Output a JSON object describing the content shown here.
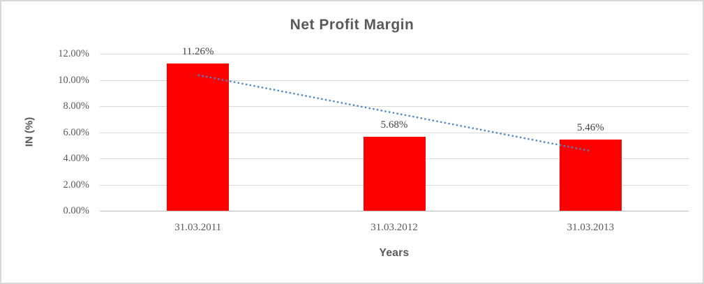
{
  "window": {
    "background": "#ffffff",
    "border_color": "#d9d9d9"
  },
  "chart_data": {
    "type": "bar",
    "title": "Net Profit Margin",
    "xlabel": "Years",
    "ylabel": "IN (%)",
    "categories": [
      "31.03.2011",
      "31.03.2012",
      "31.03.2013"
    ],
    "series": [
      {
        "name": "Net Profit Margin",
        "values": [
          11.26,
          5.68,
          5.46
        ]
      }
    ],
    "data_labels": [
      "11.26%",
      "5.68%",
      "5.46%"
    ],
    "ylim": [
      0,
      12
    ],
    "ytick_labels": [
      "12.00%",
      "10.00%",
      "8.00%",
      "6.00%",
      "4.00%",
      "2.00%",
      "0.00%"
    ],
    "grid": true,
    "legend": "none",
    "bar_color": "#ff0000",
    "trendline": {
      "type": "linear",
      "style": "dotted",
      "color": "#4a86c8",
      "start_value": 10.37,
      "end_value": 4.57
    }
  },
  "colors": {
    "title": "#595959",
    "axis_title": "#595959",
    "tick_label": "#595959",
    "data_label": "#3f3f3f",
    "gridline": "#d9d9d9",
    "axis_line": "#bfbfbf"
  }
}
